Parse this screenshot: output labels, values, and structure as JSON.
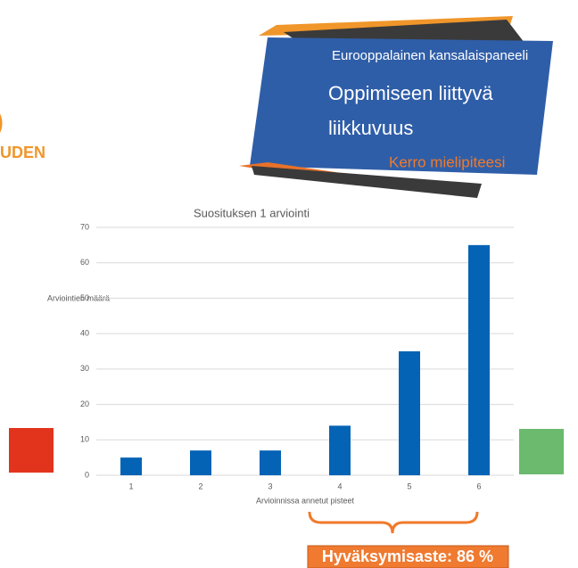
{
  "slide": {
    "banner": {
      "kicker": "Eurooppalainen kansalaispaneeli",
      "title_lines": [
        "Oppimiseen liittyvä",
        "liikkuvuus"
      ],
      "tagline": "Kerro mielipiteesi"
    },
    "left_fragments": [
      ")",
      "UDEN"
    ],
    "result": "Hyväksymisaste: 86 %"
  },
  "chart_data": {
    "type": "bar",
    "title": "Suosituksen 1 arviointi",
    "y_label": "Arviointien määrä",
    "x_label": "Arvioinnissa annetut pisteet",
    "categories": [
      "1",
      "2",
      "3",
      "4",
      "5",
      "6"
    ],
    "values": [
      5,
      7,
      7,
      14,
      35,
      65
    ],
    "color": "#0563b5",
    "ylim": [
      0,
      70
    ],
    "yticks": [
      0,
      10,
      20,
      30,
      40,
      50,
      60,
      70
    ],
    "grid": true
  }
}
